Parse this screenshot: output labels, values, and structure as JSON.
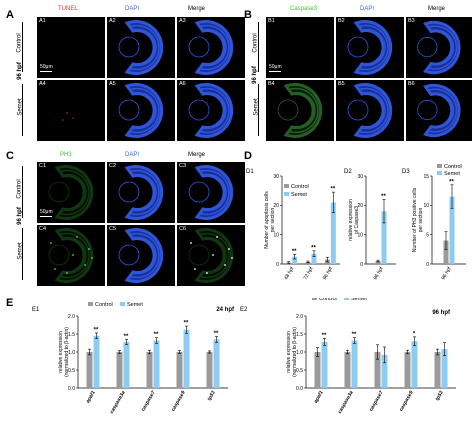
{
  "panels": {
    "A": {
      "letter": "A",
      "stains": [
        "TUNEL",
        "DAPI",
        "Merge"
      ],
      "stain_colors": [
        "#e0302a",
        "#3a6cd8",
        "#000000"
      ],
      "tiles": [
        "A1",
        "A2",
        "A3",
        "A4",
        "A5",
        "A6"
      ],
      "rows": [
        "Control",
        "Semet"
      ],
      "hpf": "96 hpf",
      "scale": "50μm"
    },
    "B": {
      "letter": "B",
      "stains": [
        "Caspase3",
        "DAPI",
        "Merge"
      ],
      "stain_colors": [
        "#3cc23c",
        "#3a6cd8",
        "#000000"
      ],
      "tiles": [
        "B1",
        "B2",
        "B3",
        "B4",
        "B5",
        "B6"
      ],
      "rows": [
        "Control",
        "Semet"
      ],
      "hpf": "96 hpf",
      "scale": "50μm"
    },
    "C": {
      "letter": "C",
      "stains": [
        "PH3",
        "DAPI",
        "Merge"
      ],
      "stain_colors": [
        "#3cc23c",
        "#3a6cd8",
        "#000000"
      ],
      "tiles": [
        "C1",
        "C2",
        "C3",
        "C4",
        "C5",
        "C6"
      ],
      "rows": [
        "Control",
        "Semet"
      ],
      "hpf": "96 hpf",
      "scale": "50μm"
    },
    "D": {
      "letter": "D"
    },
    "E": {
      "letter": "E"
    }
  },
  "colors": {
    "control": "#9a9a9a",
    "semet": "#8ecbf0"
  },
  "chart_data": [
    {
      "id": "D1",
      "type": "bar",
      "legend": [
        "Control",
        "Semet"
      ],
      "ylabel": "Number of apoptosis cells per section",
      "ylim": [
        0,
        30
      ],
      "yticks": [
        0,
        10,
        20,
        30
      ],
      "categories": [
        "48 hpf",
        "72 hpf",
        "96 hpf"
      ],
      "series": [
        {
          "name": "Control",
          "values": [
            0.5,
            0.7,
            1.5
          ],
          "err": [
            0.3,
            0.3,
            0.8
          ]
        },
        {
          "name": "Semet",
          "values": [
            2.5,
            3.5,
            21
          ],
          "err": [
            0.8,
            1.0,
            3.5
          ]
        }
      ],
      "annotations": [
        "**",
        "**",
        "**"
      ]
    },
    {
      "id": "D2",
      "type": "bar",
      "ylabel": "relative expression of Caspase3",
      "ylim": [
        0,
        30
      ],
      "yticks": [
        0,
        10,
        20,
        30
      ],
      "categories": [
        "96 hpf"
      ],
      "series": [
        {
          "name": "Control",
          "values": [
            1
          ],
          "err": [
            0.3
          ]
        },
        {
          "name": "Semet",
          "values": [
            18
          ],
          "err": [
            4
          ]
        }
      ],
      "annotations": [
        "**"
      ]
    },
    {
      "id": "D3",
      "type": "bar",
      "legend": [
        "Control",
        "Semet"
      ],
      "ylabel": "Number of PH3 positive cells per section",
      "ylim": [
        0,
        15
      ],
      "yticks": [
        0,
        5,
        10,
        15
      ],
      "categories": [
        "96 hpf"
      ],
      "series": [
        {
          "name": "Control",
          "values": [
            4
          ],
          "err": [
            1.5
          ]
        },
        {
          "name": "Semet",
          "values": [
            11.5
          ],
          "err": [
            2
          ]
        }
      ],
      "annotations": [
        "**"
      ]
    },
    {
      "id": "E1",
      "type": "bar",
      "legend": [
        "Control",
        "Semet"
      ],
      "title": "24 hpf",
      "ylabel": "relative expression (normalized to β-actin)",
      "ylim": [
        0,
        2.0
      ],
      "yticks": [
        0.0,
        0.5,
        1.0,
        1.5,
        2.0
      ],
      "categories": [
        "apaf1",
        "caspase3a",
        "caspase7",
        "caspase9",
        "tp53"
      ],
      "series": [
        {
          "name": "Control",
          "values": [
            1.0,
            1.0,
            1.0,
            1.0,
            1.0
          ],
          "err": [
            0.08,
            0.04,
            0.05,
            0.04,
            0.03
          ]
        },
        {
          "name": "Semet",
          "values": [
            1.45,
            1.28,
            1.32,
            1.62,
            1.35
          ],
          "err": [
            0.08,
            0.07,
            0.08,
            0.1,
            0.08
          ]
        }
      ],
      "annotations": [
        "**",
        "**",
        "**",
        "**",
        "**"
      ]
    },
    {
      "id": "E2",
      "type": "bar",
      "legend": [
        "Control",
        "Semet"
      ],
      "title": "96 hpf",
      "ylabel": "relative expression (normalized to β-actin)",
      "ylim": [
        0,
        2.0
      ],
      "yticks": [
        0.0,
        0.5,
        1.0,
        1.5,
        2.0
      ],
      "categories": [
        "apaf1",
        "caspase3a",
        "caspase7",
        "caspase9",
        "tp53"
      ],
      "series": [
        {
          "name": "Control",
          "values": [
            1.0,
            1.0,
            1.0,
            1.0,
            1.0
          ],
          "err": [
            0.12,
            0.05,
            0.2,
            0.05,
            0.08
          ]
        },
        {
          "name": "Semet",
          "values": [
            1.28,
            1.32,
            0.92,
            1.3,
            1.08
          ],
          "err": [
            0.1,
            0.08,
            0.22,
            0.12,
            0.18
          ]
        }
      ],
      "annotations": [
        "**",
        "**",
        "",
        "*",
        ""
      ]
    }
  ]
}
